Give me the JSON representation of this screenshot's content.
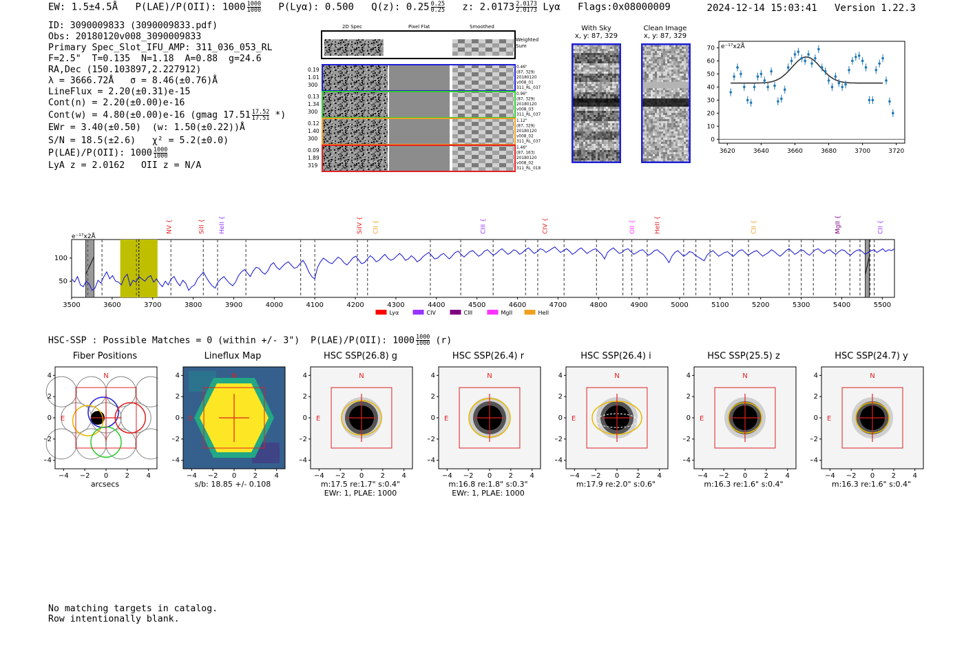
{
  "header": {
    "ew": "EW: 1.5±4.5Å",
    "plae_label": "P(LAE)/P(OII): 1000",
    "plae_hi": "1000",
    "plae_lo": "1000",
    "plya": "P(Lyα): 0.500",
    "qz_label": "Q(z): 0.25",
    "qz_hi": "0.25",
    "qz_lo": "0.25",
    "z_label": "z: 2.0173",
    "z_hi": "2.0173",
    "z_lo": "2.0173",
    "z_line": "Lyα",
    "flags": "Flags:0x08000009",
    "timestamp": "2024-12-14 15:03:41",
    "version": "Version 1.22.3"
  },
  "info": {
    "lines": [
      "ID: 3090009833 (3090009833.pdf)",
      "Obs: 20180120v008_3090009833",
      "Primary Spec_Slot_IFU_AMP: 311_036_053_RL",
      "F=2.5\"  T=0.135  N=1.18  A=0.88  g=24.6",
      "RA,Dec (150.103897,2.227912)",
      "λ = 3666.72Å   σ = 8.46(±0.76)Å",
      "LineFlux = 2.20(±0.31)e-15",
      "Cont(n) = 2.20(±0.00)e-16"
    ],
    "contw_label": "Cont(w) = 4.80(±0.00)e-16 (gmag 17.51",
    "contw_hi": "17.52",
    "contw_lo": "17.51",
    "contw_tail": "*)",
    "lines2": [
      "EWr = 3.40(±0.50)  (w: 1.50(±0.22))Å",
      "S/N = 18.5(±2.6)   χ² = 5.2(±0.0)"
    ],
    "plae2_label": "P(LAE)/P(OII): 1000",
    "plae2_hi": "1000",
    "plae2_lo": "1000",
    "lya_z": "LyA z = 2.0162   OII z = N/A"
  },
  "spec2d": {
    "col_headers": [
      "2D Spec",
      "Pixel Flat",
      "Smoothed"
    ],
    "weighted": "Weighted\nSum",
    "rows": [
      {
        "left": [
          "0.19",
          "1.01",
          "300"
        ],
        "right": [
          "0.46\"",
          "(87, 329)",
          "20180120",
          "v008_01",
          "311_RL_037"
        ],
        "color": "#1f1fd6"
      },
      {
        "left": [
          "0.13",
          "1.34",
          "300"
        ],
        "right": [
          "0.96\"",
          "(87, 329)",
          "20180120",
          "v008_03",
          "311_RL_037"
        ],
        "color": "#2ecc2e"
      },
      {
        "left": [
          "0.12",
          "1.40",
          "300"
        ],
        "right": [
          "1.12\"",
          "(87, 329)",
          "20180120",
          "v008_02",
          "311_RL_037"
        ],
        "color": "#f0a020"
      },
      {
        "left": [
          "0.09",
          "1.89",
          "319"
        ],
        "right": [
          "1.46\"",
          "(87, 163)",
          "20180120",
          "v008_02",
          "311_RL_018"
        ],
        "color": "#e02020"
      }
    ]
  },
  "sky": {
    "with_sky_title": "With Sky",
    "with_sky_xy": "x, y: 87, 329",
    "clean_title": "Clean Image",
    "clean_xy": "x, y: 87, 329"
  },
  "chart_data": [
    {
      "type": "scatter",
      "title": "",
      "ylabel_unit": "e⁻¹⁷x2Å",
      "xlim": [
        3615,
        3725
      ],
      "ylim": [
        -3,
        75
      ],
      "xticks": [
        3620,
        3640,
        3660,
        3680,
        3700,
        3720
      ],
      "yticks": [
        0,
        10,
        20,
        30,
        40,
        50,
        60,
        70
      ],
      "points": [
        {
          "x": 3622,
          "y": 36
        },
        {
          "x": 3624,
          "y": 48
        },
        {
          "x": 3626,
          "y": 55
        },
        {
          "x": 3628,
          "y": 50
        },
        {
          "x": 3630,
          "y": 40
        },
        {
          "x": 3632,
          "y": 30
        },
        {
          "x": 3634,
          "y": 28
        },
        {
          "x": 3636,
          "y": 40
        },
        {
          "x": 3638,
          "y": 48
        },
        {
          "x": 3640,
          "y": 50
        },
        {
          "x": 3642,
          "y": 45
        },
        {
          "x": 3644,
          "y": 40
        },
        {
          "x": 3646,
          "y": 52
        },
        {
          "x": 3648,
          "y": 41
        },
        {
          "x": 3650,
          "y": 29
        },
        {
          "x": 3652,
          "y": 31
        },
        {
          "x": 3654,
          "y": 38
        },
        {
          "x": 3656,
          "y": 55
        },
        {
          "x": 3658,
          "y": 60
        },
        {
          "x": 3660,
          "y": 65
        },
        {
          "x": 3662,
          "y": 67
        },
        {
          "x": 3664,
          "y": 62
        },
        {
          "x": 3666,
          "y": 60
        },
        {
          "x": 3668,
          "y": 65
        },
        {
          "x": 3670,
          "y": 58
        },
        {
          "x": 3672,
          "y": 62
        },
        {
          "x": 3674,
          "y": 69
        },
        {
          "x": 3676,
          "y": 55
        },
        {
          "x": 3678,
          "y": 52
        },
        {
          "x": 3680,
          "y": 45
        },
        {
          "x": 3682,
          "y": 40
        },
        {
          "x": 3684,
          "y": 48
        },
        {
          "x": 3686,
          "y": 43
        },
        {
          "x": 3688,
          "y": 40
        },
        {
          "x": 3690,
          "y": 42
        },
        {
          "x": 3692,
          "y": 53
        },
        {
          "x": 3694,
          "y": 60
        },
        {
          "x": 3696,
          "y": 63
        },
        {
          "x": 3698,
          "y": 64
        },
        {
          "x": 3700,
          "y": 60
        },
        {
          "x": 3702,
          "y": 55
        },
        {
          "x": 3704,
          "y": 30
        },
        {
          "x": 3706,
          "y": 30
        },
        {
          "x": 3708,
          "y": 53
        },
        {
          "x": 3710,
          "y": 58
        },
        {
          "x": 3712,
          "y": 62
        },
        {
          "x": 3714,
          "y": 45
        },
        {
          "x": 3716,
          "y": 29
        },
        {
          "x": 3718,
          "y": 20
        }
      ],
      "fit": {
        "base": 43,
        "amp": 20,
        "center": 3666.72,
        "sigma": 8.46,
        "x_from": 3622,
        "x_to": 3712
      }
    },
    {
      "type": "line",
      "title": "",
      "ylabel_unit": "e⁻¹⁷x2Å",
      "xlim": [
        3500,
        5530
      ],
      "ylim": [
        15,
        140
      ],
      "xticks": [
        3500,
        3600,
        3700,
        3800,
        3900,
        4000,
        4100,
        4200,
        4300,
        4400,
        4500,
        4600,
        4700,
        4800,
        4900,
        5000,
        5100,
        5200,
        5300,
        5400,
        5500
      ],
      "yticks": [
        50,
        100
      ],
      "line_labels": [
        {
          "label": "NV",
          "x": 3740,
          "color": "#e02020"
        },
        {
          "label": "SiII",
          "x": 3820,
          "color": "#e02020"
        },
        {
          "label": "HeII",
          "x": 3870,
          "color": "#9933ff"
        },
        {
          "label": "SiIV",
          "x": 4210,
          "color": "#e02020"
        },
        {
          "label": "CII",
          "x": 4250,
          "color": "#f0a020"
        },
        {
          "label": "CIII",
          "x": 4515,
          "color": "#9933ff"
        },
        {
          "label": "CIV",
          "x": 4668,
          "color": "#e02020"
        },
        {
          "label": "OII",
          "x": 4883,
          "color": "#ff33ff"
        },
        {
          "label": "HeII",
          "x": 4945,
          "color": "#e02020"
        },
        {
          "label": "CII",
          "x": 5183,
          "color": "#f0a020"
        },
        {
          "label": "MgII",
          "x": 5390,
          "color": "#800080"
        },
        {
          "label": "CII",
          "x": 5495,
          "color": "#9933ff"
        }
      ],
      "dashed_lines": [
        3540,
        3575,
        3660,
        3745,
        3825,
        3860,
        3930,
        4065,
        4100,
        4205,
        4230,
        4385,
        4460,
        4540,
        4620,
        4650,
        4715,
        4795,
        4860,
        4882,
        4920,
        5010,
        5040,
        5075,
        5130,
        5170,
        5270,
        5300,
        5330,
        5385,
        5420,
        5445,
        5470,
        5480
      ],
      "highlight": {
        "from": 3620,
        "to": 3712,
        "color": "#bfbf00"
      },
      "gray_bands": [
        {
          "from": 3535,
          "to": 3555
        },
        {
          "from": 5458,
          "to": 5468
        }
      ],
      "legend": [
        {
          "label": "Lyα",
          "color": "#ff0000"
        },
        {
          "label": "CIV",
          "color": "#9933ff"
        },
        {
          "label": "CIII",
          "color": "#800080"
        },
        {
          "label": "MgII",
          "color": "#ff33ff"
        },
        {
          "label": "HeII",
          "color": "#f0a020"
        }
      ],
      "values": [
        55,
        48,
        60,
        42,
        38,
        50,
        44,
        30,
        35,
        52,
        46,
        60,
        70,
        55,
        62,
        50,
        48,
        42,
        58,
        65,
        40,
        52,
        48,
        60,
        55,
        50,
        58,
        62,
        48,
        55,
        45,
        38,
        50,
        42,
        55,
        60,
        48,
        40,
        52,
        45,
        30,
        38,
        42,
        55,
        62,
        70,
        58,
        48,
        40,
        35,
        48,
        55,
        60,
        52,
        45,
        40,
        48,
        62,
        70,
        75,
        68,
        60,
        72,
        80,
        78,
        70,
        65,
        72,
        85,
        90,
        80,
        75,
        82,
        88,
        92,
        85,
        78,
        80,
        88,
        95,
        85,
        70,
        60,
        55,
        80,
        92,
        100,
        95,
        90,
        88,
        95,
        102,
        98,
        90,
        85,
        92,
        100,
        104,
        96,
        88,
        90,
        98,
        105,
        100,
        92,
        95,
        102,
        108,
        100,
        95,
        98,
        104,
        110,
        104,
        95,
        98,
        105,
        100,
        92,
        96,
        103,
        108,
        112,
        105,
        98,
        100,
        106,
        110,
        104,
        98,
        105,
        112,
        115,
        108,
        102,
        108,
        114,
        116,
        110,
        104,
        108,
        115,
        118,
        112,
        106,
        110,
        116,
        120,
        114,
        108,
        112,
        118,
        115,
        108,
        112,
        118,
        122,
        116,
        110,
        114,
        120,
        118,
        112,
        116,
        120,
        124,
        118,
        112,
        116,
        120,
        115,
        108,
        112,
        118,
        122,
        116,
        110,
        114,
        118,
        120,
        114,
        108,
        98,
        112,
        118,
        122,
        116,
        110,
        112,
        118,
        120,
        114,
        108,
        112,
        116,
        118,
        112,
        106,
        110,
        116,
        118,
        112,
        108,
        100,
        90,
        104,
        112,
        116,
        110,
        104,
        108,
        114,
        112,
        106,
        102,
        98,
        94,
        106,
        112,
        116,
        110,
        104,
        108,
        112,
        114,
        108,
        104,
        110,
        116,
        118,
        112,
        106,
        110,
        114,
        116,
        110,
        104,
        108,
        112,
        118,
        114,
        108,
        104,
        110,
        116,
        120,
        114,
        108,
        112,
        118,
        116,
        110,
        106,
        112,
        118,
        120,
        114,
        110,
        116,
        118,
        112,
        108,
        114,
        118,
        116,
        110,
        106,
        112,
        116,
        118,
        114,
        108,
        112,
        116,
        118,
        112,
        116,
        120,
        114,
        118,
        116,
        120
      ]
    }
  ],
  "hsc": {
    "summary_label": "HSC-SSP : Possible Matches = 0 (within +/- 3\")  P(LAE)/P(OII): 1000",
    "summary_hi": "1000",
    "summary_lo": "1000",
    "summary_tail": "(r)",
    "panels": [
      {
        "title": "Fiber Positions",
        "kind": "fiber",
        "xlabel": "arcsecs",
        "cap2": ""
      },
      {
        "title": "Lineflux Map",
        "kind": "lineflux",
        "xlabel": "s/b: 18.85 +/- 0.108",
        "cap2": ""
      },
      {
        "title": "HSC SSP(26.8) g",
        "kind": "hsc",
        "xlabel": "m:17.5  re:1.7\"  s:0.4\"",
        "cap2": "EWr: 1, PLAE: 1000",
        "ellipse": [
          58,
          50,
          0
        ]
      },
      {
        "title": "HSC SSP(26.4) r",
        "kind": "hsc",
        "xlabel": "m:16.8  re:1.8\"  s:0.3\"",
        "cap2": "EWr: 1, PLAE: 1000",
        "ellipse": [
          60,
          56,
          0
        ]
      },
      {
        "title": "HSC SSP(26.4) i",
        "kind": "hsc",
        "xlabel": "m:17.9  re:2.0\"  s:0.6\"",
        "cap2": "",
        "ellipse": [
          72,
          48,
          0
        ]
      },
      {
        "title": "HSC SSP(25.5) z",
        "kind": "hsc",
        "xlabel": "m:16.3  re:1.6\"  s:0.4\"",
        "cap2": "",
        "ellipse": [
          48,
          44,
          0
        ]
      },
      {
        "title": "HSC SSP(24.7) y",
        "kind": "hsc",
        "xlabel": "m:16.3  re:1.6\"  s:0.4\"",
        "cap2": "",
        "ellipse": [
          48,
          44,
          0
        ]
      }
    ],
    "axis_ticks": [
      "−4",
      "−2",
      "0",
      "2",
      "4"
    ],
    "north": "N",
    "east": "E"
  },
  "footer": {
    "line1": "No matching targets in catalog.",
    "line2": "Row intentionally blank."
  }
}
